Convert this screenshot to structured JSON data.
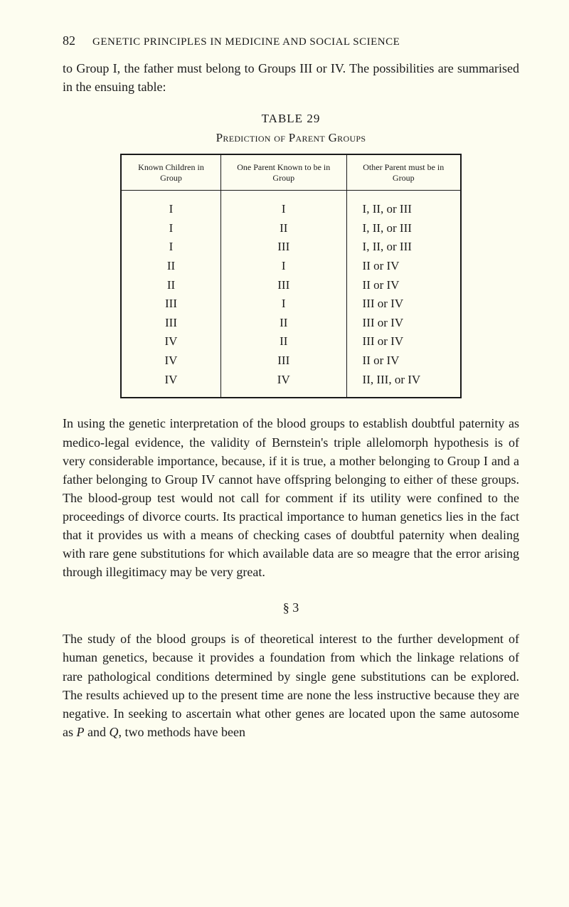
{
  "page_number": "82",
  "running_title": "GENETIC PRINCIPLES IN MEDICINE AND SOCIAL SCIENCE",
  "intro": "to Group I, the father must belong to Groups III or IV. The possibilities are summarised in the ensuing table:",
  "table": {
    "number": "TABLE 29",
    "caption": "Prediction of Parent Groups",
    "columns": [
      "Known Children in\nGroup",
      "One Parent Known to\nbe in Group",
      "Other Parent must be\nin Group"
    ],
    "rows": [
      [
        "I",
        "I",
        "I, II, or III"
      ],
      [
        "I",
        "II",
        "I, II, or III"
      ],
      [
        "I",
        "III",
        "I, II, or III"
      ],
      [
        "II",
        "I",
        "II or IV"
      ],
      [
        "II",
        "III",
        "II or IV"
      ],
      [
        "III",
        "I",
        "III or IV"
      ],
      [
        "III",
        "II",
        "III or IV"
      ],
      [
        "IV",
        "II",
        "III or IV"
      ],
      [
        "IV",
        "III",
        "II or IV"
      ],
      [
        "IV",
        "IV",
        "II, III, or IV"
      ]
    ]
  },
  "para1": "In using the genetic interpretation of the blood groups to establish doubtful paternity as medico-legal evidence, the validity of Bernstein's triple allelomorph hypothesis is of very considerable importance, because, if it is true, a mother belonging to Group I and a father belonging to Group IV cannot have offspring belonging to either of these groups. The blood-group test would not call for comment if its utility were confined to the proceedings of divorce courts. Its practical importance to human genetics lies in the fact that it provides us with a means of checking cases of doubtful paternity when dealing with rare gene substitutions for which available data are so meagre that the error arising through illegitimacy may be very great.",
  "section_mark": "§ 3",
  "para2_parts": [
    "The study of the blood groups is of theoretical interest to the further development of human genetics, because it provides a foundation from which the linkage relations of rare pathological conditions determined by single gene substitutions can be explored. The results achieved up to the present time are none the less instructive because they are negative. In seeking to ascertain what other genes are located upon the same autosome as ",
    "P",
    " and ",
    "Q",
    ", two methods have been"
  ]
}
